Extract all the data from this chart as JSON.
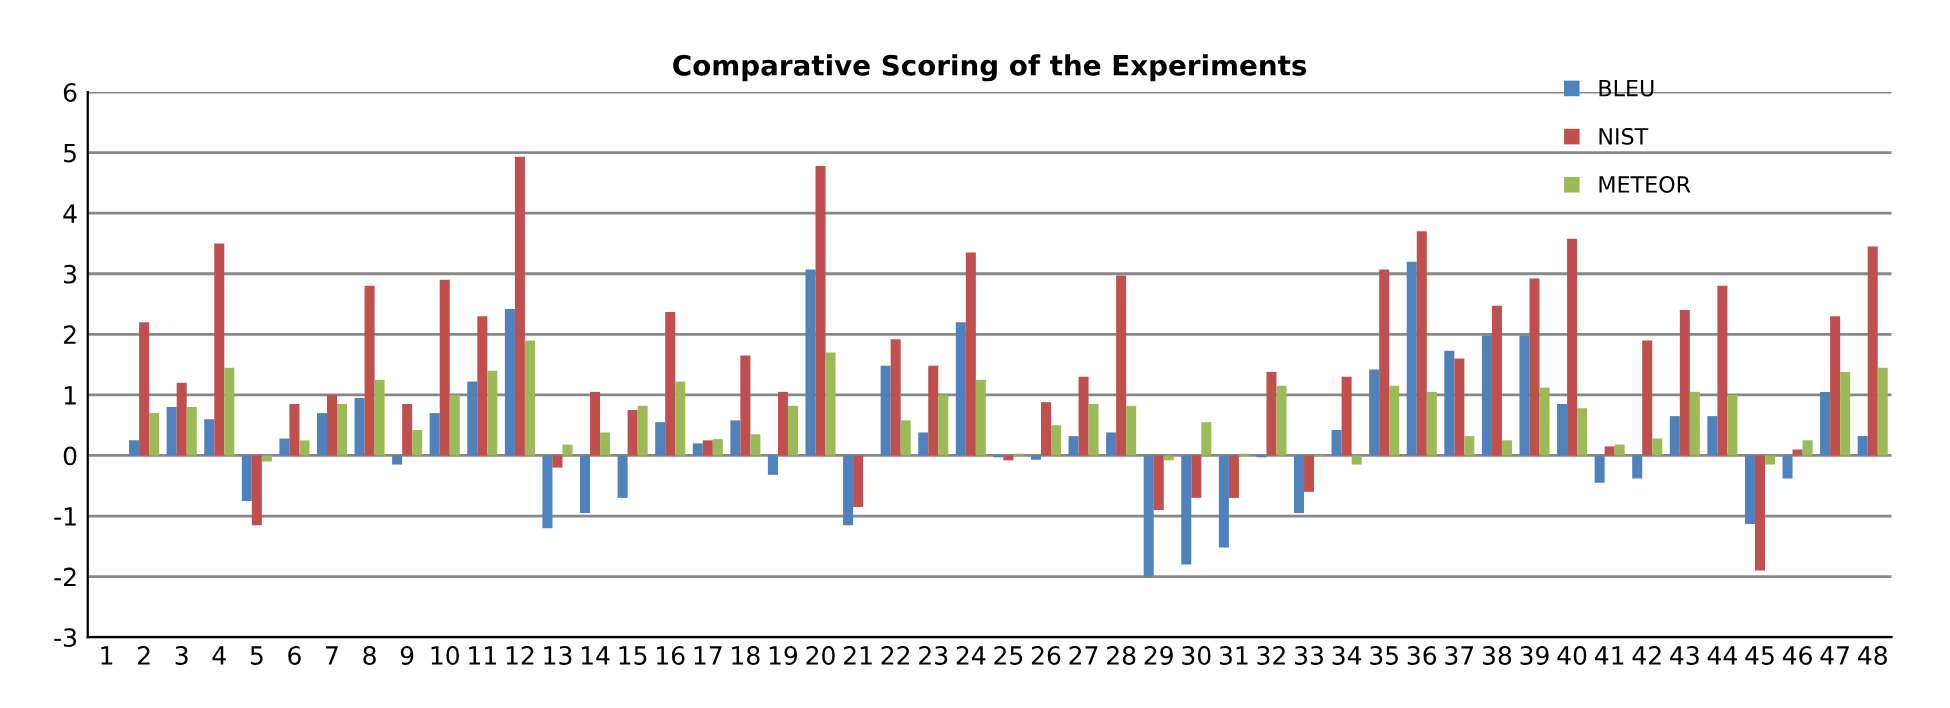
{
  "chart_data": {
    "type": "bar",
    "title": "Comparative Scoring of the Experiments",
    "categories": [
      "1",
      "2",
      "3",
      "4",
      "5",
      "6",
      "7",
      "8",
      "9",
      "10",
      "11",
      "12",
      "13",
      "14",
      "15",
      "16",
      "17",
      "18",
      "19",
      "20",
      "21",
      "22",
      "23",
      "24",
      "25",
      "26",
      "27",
      "28",
      "29",
      "30",
      "31",
      "32",
      "33",
      "34",
      "35",
      "36",
      "37",
      "38",
      "39",
      "40",
      "41",
      "42",
      "43",
      "44",
      "45",
      "46",
      "47",
      "48"
    ],
    "series": [
      {
        "name": "BLEU",
        "color": "#4f81bd",
        "values": [
          0,
          0.25,
          0.8,
          0.6,
          -0.75,
          0.28,
          0.7,
          0.95,
          -0.15,
          0.7,
          1.22,
          2.42,
          -1.2,
          -0.95,
          -0.7,
          0.55,
          0.2,
          0.58,
          -0.32,
          3.07,
          -1.15,
          1.48,
          0.38,
          2.2,
          -0.03,
          -0.07,
          0.32,
          0.38,
          -2.0,
          -1.8,
          -1.52,
          -0.03,
          -0.95,
          0.42,
          1.42,
          3.2,
          1.73,
          1.98,
          1.98,
          0.85,
          -0.45,
          -0.38,
          0.65,
          0.65,
          -1.13,
          -0.38,
          1.05,
          0.32
        ]
      },
      {
        "name": "NIST",
        "color": "#c0504d",
        "values": [
          0,
          2.2,
          1.2,
          3.5,
          -1.15,
          0.85,
          1.0,
          2.8,
          0.85,
          2.9,
          2.3,
          4.93,
          -0.2,
          1.05,
          0.75,
          2.37,
          0.25,
          1.65,
          1.05,
          4.78,
          -0.85,
          1.92,
          1.48,
          3.35,
          -0.08,
          0.88,
          1.3,
          2.97,
          -0.9,
          -0.7,
          -0.7,
          1.38,
          -0.6,
          1.3,
          3.07,
          3.7,
          1.6,
          2.47,
          2.92,
          3.58,
          0.15,
          1.9,
          2.4,
          2.8,
          -1.9,
          0.1,
          2.3,
          3.45
        ]
      },
      {
        "name": "METEOR",
        "color": "#9bbb59",
        "values": [
          0,
          0.7,
          0.8,
          1.45,
          -0.1,
          0.25,
          0.85,
          1.25,
          0.42,
          1.0,
          1.4,
          1.9,
          0.18,
          0.38,
          0.82,
          1.22,
          0.27,
          0.35,
          0.82,
          1.7,
          0,
          0.58,
          1.0,
          1.25,
          0.03,
          0.5,
          0.85,
          0.82,
          -0.08,
          0.55,
          0.03,
          1.15,
          -0.02,
          -0.15,
          1.15,
          1.05,
          0.32,
          0.25,
          1.12,
          0.78,
          0.18,
          0.28,
          1.05,
          1.0,
          -0.15,
          0.25,
          1.38,
          1.45
        ]
      }
    ],
    "ylim": [
      -3,
      6
    ],
    "yticks": [
      -3,
      -2,
      -1,
      0,
      1,
      2,
      3,
      4,
      5,
      6
    ],
    "grid": "y",
    "legend": "top right"
  }
}
